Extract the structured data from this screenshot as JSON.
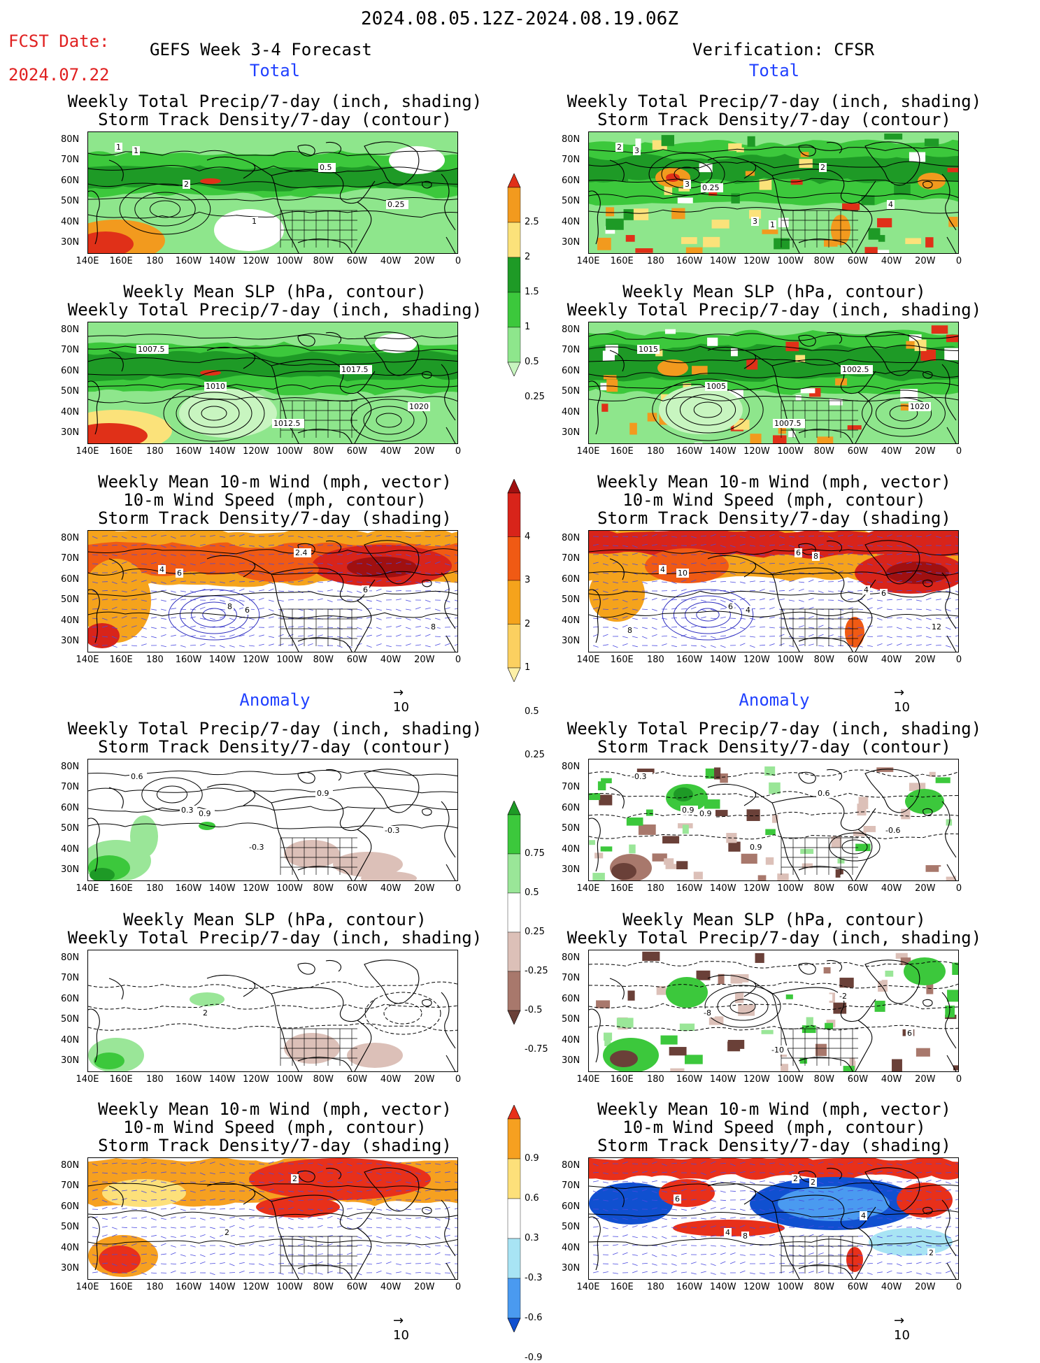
{
  "header": {
    "date_range": "2024.08.05.12Z-2024.08.19.06Z",
    "fcst_label": "FCST Date:",
    "fcst_date": "2024.07.22",
    "left_title": "GEFS Week 3-4 Forecast",
    "right_title": "Verification: CFSR"
  },
  "sections": {
    "total": "Total",
    "anomaly": "Anomaly"
  },
  "panel_titles": {
    "precip_storm": [
      "Weekly Total Precip/7-day (inch, shading)",
      "Storm Track Density/7-day (contour)"
    ],
    "slp_precip": [
      "Weekly Mean SLP (hPa, contour)",
      "Weekly Total Precip/7-day (inch, shading)"
    ],
    "wind_storm": [
      "Weekly Mean 10-m Wind (mph, vector)",
      "10-m Wind Speed (mph, contour)",
      "Storm Track Density/7-day (shading)"
    ]
  },
  "axes": {
    "lat_labels": [
      "80N",
      "70N",
      "60N",
      "50N",
      "40N",
      "30N"
    ],
    "lon_labels": [
      "140E",
      "160E",
      "180",
      "160W",
      "140W",
      "120W",
      "100W",
      "80W",
      "60W",
      "40W",
      "20W",
      "0"
    ]
  },
  "vector_ref": "10",
  "colorbars": {
    "precip_total": {
      "labels": [
        "2.5",
        "2",
        "1.5",
        "1",
        "0.5",
        "0.25"
      ],
      "colors": [
        "#e03018",
        "#f29a1e",
        "#fbe27a",
        "#1e9a26",
        "#3cc83c",
        "#8ee68c",
        "#c8f5c0"
      ]
    },
    "storm_total": {
      "labels": [
        "4",
        "3",
        "2",
        "1",
        "0.5",
        "0.25"
      ],
      "colors": [
        "#a01010",
        "#d8241a",
        "#f05a14",
        "#f5a31c",
        "#fbd060",
        "#fdf0a8"
      ]
    },
    "precip_anom": {
      "labels": [
        "0.75",
        "0.5",
        "0.25",
        "-0.25",
        "-0.5",
        "-0.75"
      ],
      "colors": [
        "#1e9a26",
        "#3cc83c",
        "#9ae698",
        "#ffffff",
        "#dcc0b8",
        "#a8786c",
        "#6a4038"
      ]
    },
    "storm_anom": {
      "labels": [
        "0.9",
        "0.6",
        "0.3",
        "-0.3",
        "-0.6",
        "-0.9"
      ],
      "colors": [
        "#e8301a",
        "#f6a020",
        "#fde07a",
        "#ffffff",
        "#a8e4f4",
        "#4a9af0",
        "#1050d0"
      ]
    }
  },
  "map_labels": {
    "gefs_total_precip": [
      "1",
      "2",
      "1",
      "0.5",
      "0.25",
      "1"
    ],
    "cfsr_total_precip": [
      "2",
      "3",
      "3",
      "2",
      "4",
      "3",
      "0.25",
      "1"
    ],
    "gefs_total_slp": [
      "1007.5",
      "1010",
      "1012.5",
      "1017.5",
      "1020"
    ],
    "cfsr_total_slp": [
      "1015",
      "1005",
      "1007.5",
      "1002.5",
      "1020"
    ],
    "gefs_total_wind": [
      "4",
      "8",
      "2.4",
      "6",
      "8",
      "6",
      "6"
    ],
    "cfsr_total_wind": [
      "4",
      "6",
      "6",
      "4",
      "12",
      "10",
      "4",
      "8",
      "6",
      "8"
    ],
    "gefs_anom_precip": [
      "0.3",
      "-0.3",
      "0.9",
      "-0.3",
      "0.6",
      "0.9"
    ],
    "cfsr_anom_precip": [
      "0.9",
      "0.9",
      "0.6",
      "-0.6",
      "-0.3",
      "0.9"
    ],
    "gefs_anom_slp": [
      "2"
    ],
    "cfsr_anom_slp": [
      "-8",
      "-10",
      "-2",
      "6"
    ],
    "gefs_anom_wind": [
      "2",
      "2"
    ],
    "cfsr_anom_wind": [
      "4",
      "2",
      "4",
      "2",
      "6",
      "8",
      "2"
    ]
  }
}
